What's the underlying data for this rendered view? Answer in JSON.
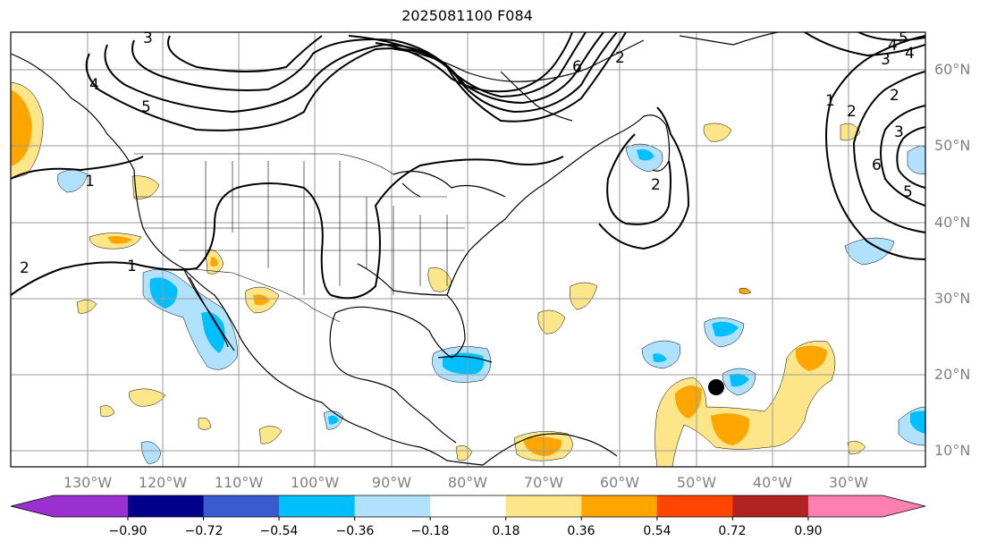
{
  "title": "2025081100 F084",
  "lat_labels": [
    "60°N",
    "50°N",
    "40°N",
    "30°N",
    "20°N",
    "10°N"
  ],
  "lon_labels": [
    "130°W",
    "120°W",
    "110°W",
    "100°W",
    "90°W",
    "80°W",
    "70°W",
    "60°W",
    "50°W",
    "40°W",
    "30°W"
  ],
  "contour_labels": [
    "3",
    "4",
    "5",
    "6",
    "2",
    "1",
    "2",
    "1",
    "2",
    "2",
    "1",
    "2",
    "3",
    "6",
    "5",
    "4",
    "5",
    "4",
    "3"
  ],
  "colorbar": {
    "ticks": [
      "−0.90",
      "−0.72",
      "−0.54",
      "−0.36",
      "−0.18",
      "0.18",
      "0.36",
      "0.54",
      "0.72",
      "0.90"
    ],
    "colors": [
      "#9b30d0",
      "#00008b",
      "#3a5bcf",
      "#00bfff",
      "#b0e2ff",
      "#ffffff",
      "#fde68a",
      "#ffa500",
      "#ff4500",
      "#b22222",
      "#ff80b0"
    ]
  },
  "marker": "storm-position-marker"
}
